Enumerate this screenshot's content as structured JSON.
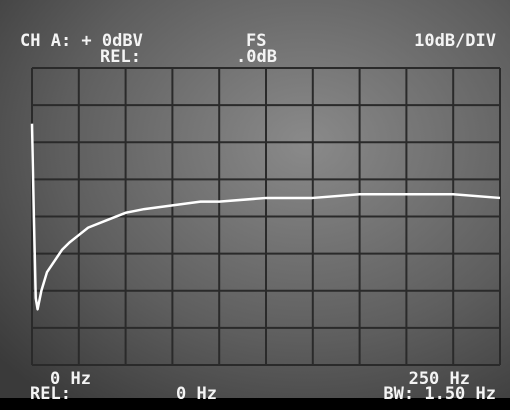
{
  "chart_data": {
    "type": "line",
    "header": {
      "channel": "CH A: + 0dBV",
      "fs": "FS",
      "rel_label": "REL:",
      "rel_value": ".0dB",
      "scale": "10dB/DIV"
    },
    "footer": {
      "start": "0 Hz",
      "rel_label": "REL:",
      "rel_value": "0 Hz",
      "stop": "250 Hz",
      "bw": "BW: 1.50 Hz"
    },
    "x": [
      0,
      1,
      2,
      3,
      5,
      8,
      12,
      16,
      20,
      25,
      30,
      40,
      50,
      60,
      75,
      90,
      100,
      125,
      150,
      175,
      200,
      225,
      250
    ],
    "values": [
      -15,
      -40,
      -62,
      -65,
      -60,
      -55,
      -52,
      -49,
      -47,
      -45,
      -43,
      -41,
      -39,
      -38,
      -37,
      -36,
      -36,
      -35,
      -35,
      -34,
      -34,
      -34,
      -35
    ],
    "color": "#ffffff",
    "xlim": [
      0,
      250
    ],
    "ylim": [
      -80,
      0
    ],
    "xticks": [
      0,
      25,
      50,
      75,
      100,
      125,
      150,
      175,
      200,
      225,
      250
    ],
    "yticks": [
      -80,
      -70,
      -60,
      -50,
      -40,
      -30,
      -20,
      -10,
      0
    ],
    "grid": true
  }
}
